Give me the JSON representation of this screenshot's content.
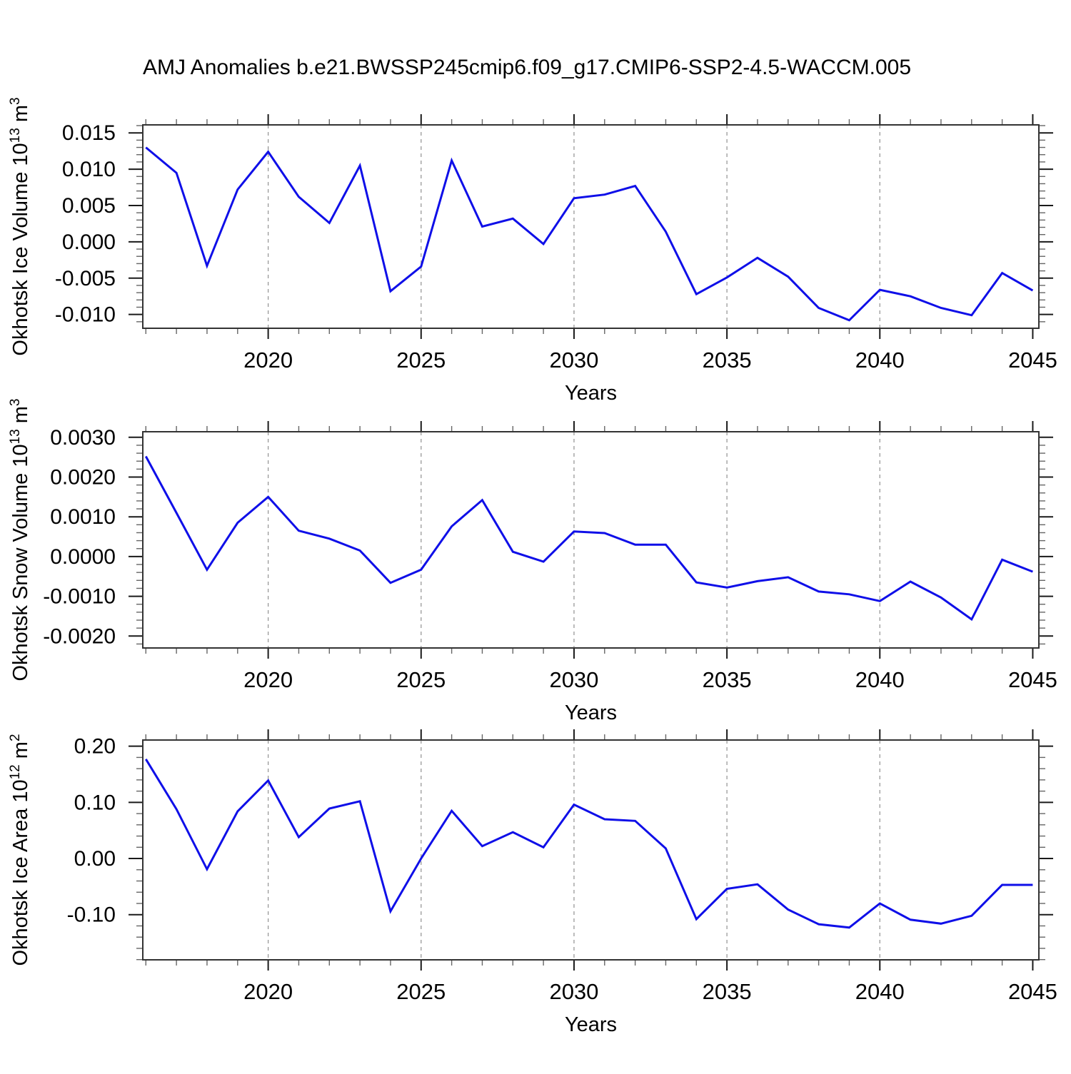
{
  "title": "AMJ Anomalies b.e21.BWSSP245cmip6.f09_g17.CMIP6-SSP2-4.5-WACCM.005",
  "background": "#ffffff",
  "axis_color": "#1a1a1a",
  "minor_tick_color": "#666666",
  "grid_color": "#999999",
  "line_color": "#0f0fe8",
  "chart_data": [
    {
      "id": "ice-volume",
      "type": "line",
      "title": "AMJ Anomalies b.e21.BWSSP245cmip6.f09_g17.CMIP6-SSP2-4.5-WACCM.005",
      "ylabel": "Okhotsk Ice Volume 10^13 m^3",
      "ylabel_rich": [
        [
          "Okhotsk Ice Volume 10",
          false
        ],
        [
          "13",
          true
        ],
        [
          " m",
          false
        ],
        [
          "3",
          true
        ]
      ],
      "xlabel": "Years",
      "line_color": "#0f0fe8",
      "xlim": [
        2015.9,
        2045.2
      ],
      "ylim": [
        -0.0119,
        0.0161
      ],
      "x": [
        2016,
        2017,
        2018,
        2019,
        2020,
        2021,
        2022,
        2023,
        2024,
        2025,
        2026,
        2027,
        2028,
        2029,
        2030,
        2031,
        2032,
        2033,
        2034,
        2035,
        2036,
        2037,
        2038,
        2039,
        2040,
        2041,
        2042,
        2043,
        2044,
        2045
      ],
      "values": [
        0.013,
        0.0095,
        -0.0033,
        0.0072,
        0.0124,
        0.0062,
        0.0026,
        0.0105,
        -0.0068,
        -0.0034,
        0.0112,
        0.0021,
        0.0032,
        -0.0003,
        0.006,
        0.0065,
        0.0077,
        0.0014,
        -0.0072,
        -0.0049,
        -0.0022,
        -0.0048,
        -0.0091,
        -0.0108,
        -0.0066,
        -0.0075,
        -0.0091,
        -0.0101,
        -0.0043,
        -0.0067
      ],
      "x_major_ticks": [
        2020,
        2025,
        2030,
        2035,
        2040,
        2045
      ],
      "x_tick_labels": [
        "2020",
        "2025",
        "2030",
        "2035",
        "2040",
        "2045"
      ],
      "x_minor_step": 1,
      "y_major_ticks": [
        0.015,
        0.01,
        0.005,
        0.0,
        -0.005,
        -0.01
      ],
      "y_tick_labels": [
        "0.015",
        "0.010",
        "0.005",
        "0.000",
        "-0.005",
        "-0.010"
      ],
      "y_minor_step": 0.001,
      "grid_years": [
        2020,
        2025,
        2030,
        2035,
        2040
      ],
      "grid_on": true,
      "legend": "none"
    },
    {
      "id": "snow-volume",
      "type": "line",
      "title": "",
      "ylabel": "Okhotsk Snow Volume 10^13 m^3",
      "ylabel_rich": [
        [
          "Okhotsk Snow Volume 10",
          false
        ],
        [
          "13",
          true
        ],
        [
          " m",
          false
        ],
        [
          "3",
          true
        ]
      ],
      "xlabel": "Years",
      "line_color": "#0f0fe8",
      "xlim": [
        2015.9,
        2045.2
      ],
      "ylim": [
        -0.0023,
        0.00314
      ],
      "x": [
        2016,
        2017,
        2018,
        2019,
        2020,
        2021,
        2022,
        2023,
        2024,
        2025,
        2026,
        2027,
        2028,
        2029,
        2030,
        2031,
        2032,
        2033,
        2034,
        2035,
        2036,
        2037,
        2038,
        2039,
        2040,
        2041,
        2042,
        2043,
        2044,
        2045
      ],
      "values": [
        0.00252,
        0.0011,
        -0.00033,
        0.00085,
        0.0015,
        0.00065,
        0.00045,
        0.00015,
        -0.00066,
        -0.00033,
        0.00076,
        0.00142,
        0.00012,
        -0.00013,
        0.00063,
        0.00059,
        0.0003,
        0.0003,
        -0.00065,
        -0.00078,
        -0.00062,
        -0.00052,
        -0.00088,
        -0.00095,
        -0.00112,
        -0.00063,
        -0.00103,
        -0.00158,
        -8e-05,
        -0.00038
      ],
      "x_major_ticks": [
        2020,
        2025,
        2030,
        2035,
        2040,
        2045
      ],
      "x_tick_labels": [
        "2020",
        "2025",
        "2030",
        "2035",
        "2040",
        "2045"
      ],
      "x_minor_step": 1,
      "y_major_ticks": [
        0.003,
        0.002,
        0.001,
        0.0,
        -0.001,
        -0.002
      ],
      "y_tick_labels": [
        "0.0030",
        "0.0020",
        "0.0010",
        "0.0000",
        "-0.0010",
        "-0.0020"
      ],
      "y_minor_step": 0.0002,
      "grid_years": [
        2020,
        2025,
        2030,
        2035,
        2040
      ],
      "grid_on": true,
      "legend": "none"
    },
    {
      "id": "ice-area",
      "type": "line",
      "title": "",
      "ylabel": "Okhotsk Ice Area 10^12 m^2",
      "ylabel_rich": [
        [
          "Okhotsk Ice Area 10",
          false
        ],
        [
          "12",
          true
        ],
        [
          " m",
          false
        ],
        [
          "2",
          true
        ]
      ],
      "xlabel": "Years",
      "line_color": "#0f0fe8",
      "xlim": [
        2015.9,
        2045.2
      ],
      "ylim": [
        -0.1804,
        0.211
      ],
      "x": [
        2016,
        2017,
        2018,
        2019,
        2020,
        2021,
        2022,
        2023,
        2024,
        2025,
        2026,
        2027,
        2028,
        2029,
        2030,
        2031,
        2032,
        2033,
        2034,
        2035,
        2036,
        2037,
        2038,
        2039,
        2040,
        2041,
        2042,
        2043,
        2044,
        2045
      ],
      "values": [
        0.177,
        0.088,
        -0.019,
        0.084,
        0.139,
        0.038,
        0.089,
        0.102,
        -0.094,
        0.0,
        0.085,
        0.022,
        0.047,
        0.02,
        0.096,
        0.07,
        0.067,
        0.018,
        -0.108,
        -0.054,
        -0.046,
        -0.091,
        -0.117,
        -0.123,
        -0.08,
        -0.109,
        -0.116,
        -0.102,
        -0.047,
        -0.047
      ],
      "x_major_ticks": [
        2020,
        2025,
        2030,
        2035,
        2040,
        2045
      ],
      "x_tick_labels": [
        "2020",
        "2025",
        "2030",
        "2035",
        "2040",
        "2045"
      ],
      "x_minor_step": 1,
      "y_major_ticks": [
        0.2,
        0.1,
        0.0,
        -0.1
      ],
      "y_tick_labels": [
        "0.20",
        "0.10",
        "0.00",
        "-0.10"
      ],
      "y_minor_step": 0.02,
      "grid_years": [
        2020,
        2025,
        2030,
        2035,
        2040
      ],
      "grid_on": true,
      "legend": "none"
    }
  ]
}
